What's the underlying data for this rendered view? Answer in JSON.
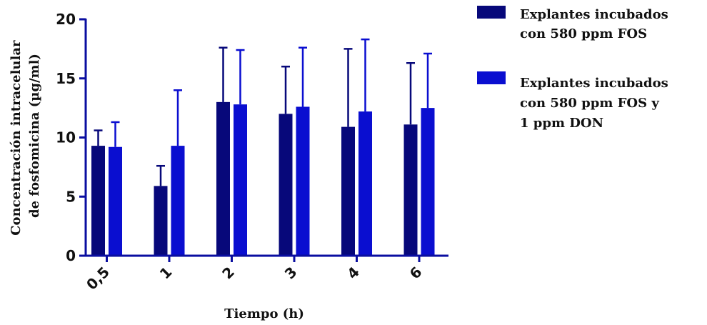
{
  "chart_data": {
    "type": "bar",
    "title": "",
    "xlabel": "Tiempo (h)",
    "ylabel_lines": [
      "Concentración intracelular",
      "de fosfomicina (µg/ml)"
    ],
    "ylim": [
      0,
      20
    ],
    "yticks": [
      "0",
      "5",
      "10",
      "15",
      "20"
    ],
    "yticks_values": [
      0,
      5,
      10,
      15,
      20
    ],
    "categories": [
      "0,5",
      "1",
      "2",
      "3",
      "4",
      "6"
    ],
    "legend_position": "right",
    "grid": false,
    "error_bars": "upper",
    "series": [
      {
        "name_lines": [
          "Explantes incubados",
          "con 580 ppm FOS"
        ],
        "color": "#07087a",
        "values": [
          9.3,
          5.9,
          13.0,
          12.0,
          10.9,
          11.1
        ],
        "errors": [
          1.3,
          1.7,
          4.6,
          4.0,
          6.6,
          5.2
        ]
      },
      {
        "name_lines": [
          "Explantes incubados",
          "con 580 ppm FOS y",
          "1 ppm DON"
        ],
        "color": "#0a0ed0",
        "values": [
          9.2,
          9.3,
          12.8,
          12.6,
          12.2,
          12.5
        ],
        "errors": [
          2.1,
          4.7,
          4.6,
          5.0,
          6.1,
          4.6
        ]
      }
    ]
  }
}
